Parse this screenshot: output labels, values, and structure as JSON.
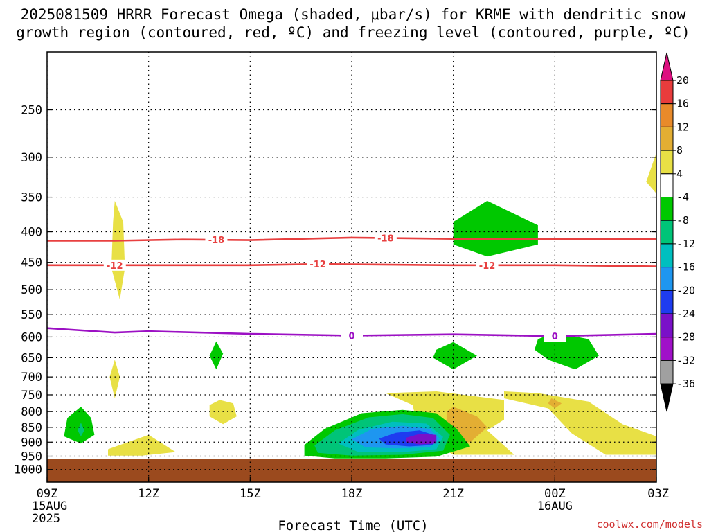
{
  "chart_data": {
    "type": "heatmap",
    "title_lines": [
      "2025081509 HRRR Forecast Omega (shaded, μbar/s) for KRME with dendritic snow",
      "growth region (contoured, red, ºC) and freezing level (contoured, purple, ºC)"
    ],
    "xlabel": "Forecast Time (UTC)",
    "credit": "coolwx.com/models",
    "x_ticks": [
      {
        "h": 0,
        "label": "09Z",
        "sub": [
          "15AUG",
          "2025"
        ]
      },
      {
        "h": 3,
        "label": "12Z"
      },
      {
        "h": 6,
        "label": "15Z"
      },
      {
        "h": 9,
        "label": "18Z"
      },
      {
        "h": 12,
        "label": "21Z"
      },
      {
        "h": 15,
        "label": "00Z",
        "sub": [
          "16AUG"
        ]
      },
      {
        "h": 18,
        "label": "03Z"
      }
    ],
    "xlim": [
      0,
      18
    ],
    "ylim": [
      1050,
      200
    ],
    "y_ticks": [
      250,
      300,
      350,
      400,
      450,
      500,
      550,
      600,
      650,
      700,
      750,
      800,
      850,
      900,
      950,
      1000
    ],
    "grid": true,
    "surface_pressure": 960,
    "surface_color": "#9b4a1e",
    "colorbar": {
      "labels": [
        "20",
        "16",
        "12",
        "8",
        "4",
        "-4",
        "-8",
        "-12",
        "-16",
        "-20",
        "-24",
        "-28",
        "-32",
        "-36"
      ],
      "colors": [
        "#dd1080",
        "#e83c3c",
        "#e88a2a",
        "#e3ae33",
        "#e8e045",
        "#ffffff",
        "#00c800",
        "#00c478",
        "#00bfbf",
        "#1e96f0",
        "#1e3cf0",
        "#7a10c8",
        "#a010c8",
        "#a0a0a0",
        "#000000"
      ]
    },
    "contours": [
      {
        "name": "freezing-level",
        "color": "#9c10c4",
        "label": "0",
        "points": [
          [
            0,
            580
          ],
          [
            2,
            590
          ],
          [
            3,
            587
          ],
          [
            6,
            593
          ],
          [
            9,
            597
          ],
          [
            12,
            594
          ],
          [
            15,
            598
          ],
          [
            18,
            593
          ]
        ],
        "label_at": [
          9,
          15
        ]
      },
      {
        "name": "isotherm-minus18",
        "color": "#e84040",
        "label": "-18",
        "points": [
          [
            0,
            414
          ],
          [
            2,
            414
          ],
          [
            4,
            412
          ],
          [
            6,
            413
          ],
          [
            9,
            409
          ],
          [
            12,
            411
          ],
          [
            15,
            411
          ],
          [
            18,
            411
          ]
        ],
        "label_at": [
          5,
          10
        ]
      },
      {
        "name": "isotherm-minus12",
        "color": "#e84040",
        "label": "-12",
        "points": [
          [
            0,
            455
          ],
          [
            3,
            455
          ],
          [
            6,
            455
          ],
          [
            8,
            453
          ],
          [
            12,
            455
          ],
          [
            15,
            455
          ],
          [
            18,
            457
          ]
        ],
        "label_at": [
          2,
          8,
          13
        ]
      }
    ],
    "shaded_regions": [
      {
        "name": "weak-ascent-1100z",
        "value": 4,
        "color": "#e8e045",
        "points": [
          [
            2.0,
            355
          ],
          [
            2.25,
            385
          ],
          [
            2.3,
            460
          ],
          [
            2.15,
            520
          ],
          [
            1.9,
            460
          ],
          [
            1.95,
            385
          ]
        ]
      },
      {
        "name": "weak-ascent-1100z-low",
        "value": 4,
        "color": "#e8e045",
        "points": [
          [
            2.0,
            655
          ],
          [
            2.15,
            700
          ],
          [
            2.0,
            760
          ],
          [
            1.85,
            700
          ]
        ]
      },
      {
        "name": "weak-ascent-1400z",
        "value": 4,
        "color": "#e8e045",
        "points": [
          [
            5.1,
            765
          ],
          [
            5.5,
            775
          ],
          [
            5.6,
            815
          ],
          [
            5.2,
            840
          ],
          [
            4.8,
            815
          ],
          [
            4.8,
            780
          ]
        ]
      },
      {
        "name": "weak-ascent-1100z-near-sfc",
        "value": 4,
        "color": "#e8e045",
        "points": [
          [
            1.8,
            925
          ],
          [
            3.0,
            875
          ],
          [
            3.8,
            935
          ],
          [
            2.8,
            948
          ],
          [
            1.8,
            948
          ]
        ]
      },
      {
        "name": "weak-ascent-2000z",
        "value": 4,
        "color": "#e8e045",
        "points": [
          [
            10.0,
            745
          ],
          [
            11.5,
            740
          ],
          [
            13.5,
            765
          ],
          [
            13.5,
            825
          ],
          [
            13.0,
            860
          ],
          [
            13.8,
            945
          ],
          [
            12.0,
            945
          ],
          [
            11.0,
            875
          ],
          [
            10.8,
            780
          ]
        ]
      },
      {
        "name": "weak-ascent-0000z",
        "value": 4,
        "color": "#e8e045",
        "points": [
          [
            13.5,
            740
          ],
          [
            14.5,
            745
          ],
          [
            16.0,
            770
          ],
          [
            17.0,
            840
          ],
          [
            18.0,
            880
          ],
          [
            18.0,
            945
          ],
          [
            16.5,
            945
          ],
          [
            15.5,
            870
          ],
          [
            14.8,
            790
          ],
          [
            13.5,
            760
          ]
        ]
      },
      {
        "name": "weak-ascent-0300z-aloft",
        "value": 4,
        "color": "#e8e045",
        "points": [
          [
            18.0,
            295
          ],
          [
            18.0,
            345
          ],
          [
            17.7,
            330
          ]
        ]
      },
      {
        "name": "mod-ascent-2100z",
        "value": 8,
        "color": "#e3ae33",
        "points": [
          [
            12.0,
            785
          ],
          [
            12.7,
            815
          ],
          [
            13.0,
            850
          ],
          [
            12.5,
            900
          ],
          [
            12.0,
            905
          ],
          [
            11.8,
            850
          ],
          [
            11.8,
            800
          ]
        ]
      },
      {
        "name": "mod-ascent-0000z",
        "value": 8,
        "color": "#e3ae33",
        "points": [
          [
            14.9,
            760
          ],
          [
            15.2,
            775
          ],
          [
            15.0,
            790
          ],
          [
            14.8,
            775
          ]
        ]
      },
      {
        "name": "descent-2200z-aloft",
        "value": -4,
        "color": "#00c800",
        "points": [
          [
            12.0,
            385
          ],
          [
            13.0,
            355
          ],
          [
            14.5,
            390
          ],
          [
            14.5,
            420
          ],
          [
            13.0,
            440
          ],
          [
            12.0,
            420
          ]
        ]
      },
      {
        "name": "descent-2100z-mid",
        "value": -4,
        "color": "#00c800",
        "points": [
          [
            11.5,
            630
          ],
          [
            12.0,
            612
          ],
          [
            12.7,
            645
          ],
          [
            12.0,
            680
          ],
          [
            11.4,
            650
          ]
        ]
      },
      {
        "name": "descent-0100z-mid",
        "value": -4,
        "color": "#00c800",
        "points": [
          [
            14.5,
            605
          ],
          [
            15.0,
            590
          ],
          [
            16.0,
            605
          ],
          [
            16.3,
            645
          ],
          [
            15.6,
            680
          ],
          [
            14.8,
            655
          ],
          [
            14.4,
            630
          ]
        ]
      },
      {
        "name": "descent-1400z-mid",
        "value": -4,
        "color": "#00c800",
        "points": [
          [
            5.0,
            610
          ],
          [
            5.2,
            640
          ],
          [
            5.0,
            680
          ],
          [
            4.8,
            645
          ]
        ]
      },
      {
        "name": "descent-1000z-low",
        "value": -4,
        "color": "#00c800",
        "points": [
          [
            1.0,
            785
          ],
          [
            1.3,
            820
          ],
          [
            1.4,
            875
          ],
          [
            1.0,
            905
          ],
          [
            0.5,
            880
          ],
          [
            0.6,
            820
          ]
        ]
      },
      {
        "name": "descent-1000z-low-core",
        "value": -8,
        "color": "#00c478",
        "points": [
          [
            1.0,
            835
          ],
          [
            1.1,
            860
          ],
          [
            1.0,
            880
          ],
          [
            0.9,
            860
          ]
        ]
      },
      {
        "name": "descent-1900z",
        "value": -4,
        "color": "#00c800",
        "points": [
          [
            7.6,
            910
          ],
          [
            8.2,
            855
          ],
          [
            9.3,
            805
          ],
          [
            10.5,
            795
          ],
          [
            11.5,
            805
          ],
          [
            12.1,
            855
          ],
          [
            12.5,
            915
          ],
          [
            11.5,
            952
          ],
          [
            10.0,
            958
          ],
          [
            8.5,
            958
          ],
          [
            7.6,
            948
          ]
        ]
      },
      {
        "name": "descent-1900z-8",
        "value": -8,
        "color": "#00c478",
        "points": [
          [
            7.9,
            912
          ],
          [
            8.5,
            860
          ],
          [
            9.5,
            818
          ],
          [
            10.5,
            808
          ],
          [
            11.4,
            820
          ],
          [
            11.9,
            875
          ],
          [
            11.7,
            930
          ],
          [
            10.5,
            945
          ],
          [
            9.0,
            948
          ],
          [
            8.0,
            938
          ]
        ]
      },
      {
        "name": "descent-1900z-12",
        "value": -12,
        "color": "#00bfbf",
        "points": [
          [
            8.6,
            905
          ],
          [
            9.2,
            858
          ],
          [
            10.2,
            832
          ],
          [
            11.2,
            838
          ],
          [
            11.7,
            882
          ],
          [
            11.5,
            925
          ],
          [
            10.5,
            935
          ],
          [
            9.2,
            935
          ]
        ]
      },
      {
        "name": "descent-1900z-16",
        "value": -16,
        "color": "#1e96f0",
        "points": [
          [
            9.0,
            890
          ],
          [
            9.6,
            855
          ],
          [
            10.5,
            845
          ],
          [
            11.3,
            855
          ],
          [
            11.6,
            888
          ],
          [
            11.3,
            918
          ],
          [
            10.3,
            922
          ],
          [
            9.4,
            918
          ]
        ]
      },
      {
        "name": "descent-1900z-20",
        "value": -20,
        "color": "#1e3cf0",
        "points": [
          [
            9.8,
            888
          ],
          [
            10.3,
            868
          ],
          [
            11.0,
            860
          ],
          [
            11.5,
            878
          ],
          [
            11.4,
            910
          ],
          [
            10.7,
            915
          ],
          [
            10.0,
            908
          ]
        ]
      },
      {
        "name": "descent-1900z-24",
        "value": -24,
        "color": "#7a10c8",
        "points": [
          [
            10.6,
            885
          ],
          [
            11.0,
            872
          ],
          [
            11.5,
            875
          ],
          [
            11.5,
            905
          ],
          [
            11.0,
            908
          ],
          [
            10.6,
            900
          ]
        ]
      }
    ]
  }
}
